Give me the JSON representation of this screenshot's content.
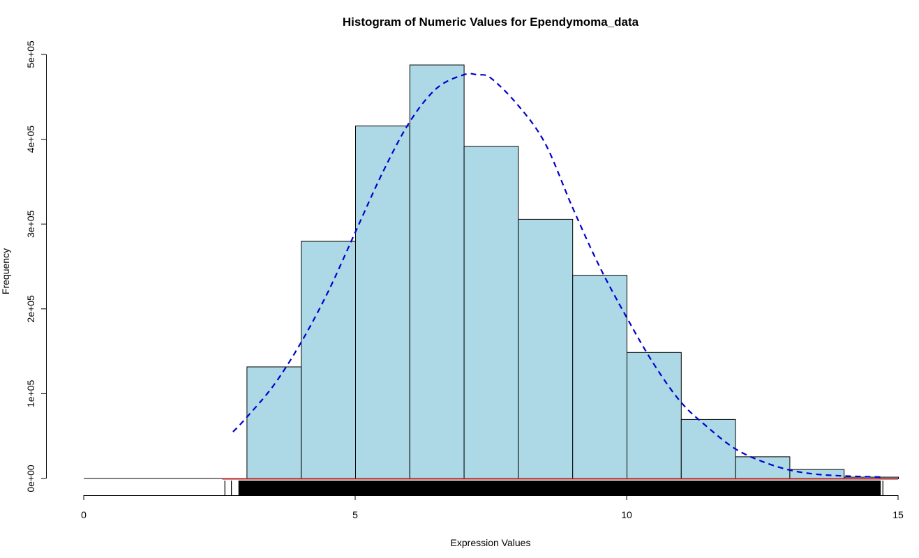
{
  "chart_data": {
    "type": "bar",
    "title": "Histogram of Numeric Values for Ependymoma_data",
    "xlabel": "Expression Values",
    "ylabel": "Frequency",
    "xlim": [
      0,
      15
    ],
    "ylim": [
      0,
      500000
    ],
    "x_ticks": [
      0,
      5,
      10,
      15
    ],
    "x_tick_labels": [
      "0",
      "5",
      "10",
      "15"
    ],
    "y_ticks": [
      0,
      100000,
      200000,
      300000,
      400000,
      500000
    ],
    "y_tick_labels": [
      "0e+00",
      "1e+05",
      "2e+05",
      "3e+05",
      "4e+05",
      "5e+05"
    ],
    "bins": [
      {
        "start": 3,
        "end": 4,
        "count": 132000
      },
      {
        "start": 4,
        "end": 5,
        "count": 280000
      },
      {
        "start": 5,
        "end": 6,
        "count": 416000
      },
      {
        "start": 6,
        "end": 7,
        "count": 488000
      },
      {
        "start": 7,
        "end": 8,
        "count": 392000
      },
      {
        "start": 8,
        "end": 9,
        "count": 306000
      },
      {
        "start": 9,
        "end": 10,
        "count": 240000
      },
      {
        "start": 10,
        "end": 11,
        "count": 149000
      },
      {
        "start": 11,
        "end": 12,
        "count": 70000
      },
      {
        "start": 12,
        "end": 13,
        "count": 26000
      },
      {
        "start": 13,
        "end": 14,
        "count": 11000
      },
      {
        "start": 14,
        "end": 15,
        "count": 2000
      }
    ],
    "density_curve": {
      "x": [
        2.75,
        3.0,
        3.5,
        4.0,
        4.5,
        5.0,
        5.5,
        6.0,
        6.5,
        7.0,
        7.25,
        7.5,
        8.0,
        8.5,
        9.0,
        9.5,
        10.0,
        10.5,
        11.0,
        11.5,
        12.0,
        12.5,
        13.0,
        13.5,
        14.0,
        14.5,
        14.75
      ],
      "y": [
        55000,
        72000,
        110000,
        160000,
        220000,
        290000,
        360000,
        420000,
        460000,
        476000,
        476000,
        472000,
        440000,
        395000,
        320000,
        250000,
        190000,
        135000,
        90000,
        60000,
        35000,
        20000,
        10000,
        5000,
        3000,
        2000,
        1500
      ],
      "color": "#0000CD",
      "style": "dashed"
    },
    "zero_line": {
      "x_start": 2.55,
      "x_end": 15.0,
      "color": "#B22222"
    },
    "rug": {
      "x_start": 2.6,
      "x_end": 14.75
    },
    "bar_fill": "#ADD8E6",
    "bar_stroke": "#000000",
    "grid": false,
    "legend": "none"
  }
}
